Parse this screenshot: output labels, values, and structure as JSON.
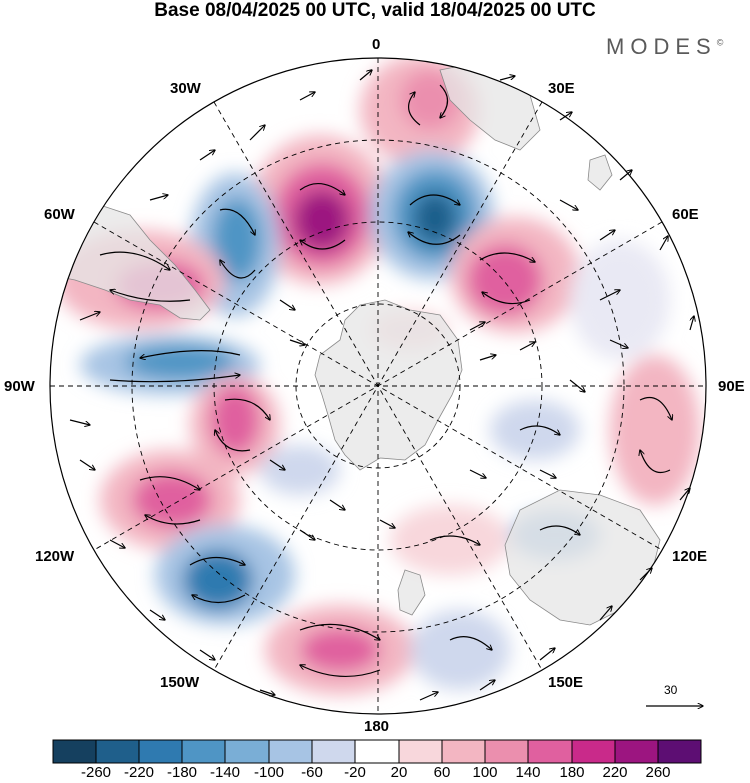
{
  "title": "Base 08/04/2025 00 UTC, valid 18/04/2025 00 UTC",
  "brand": "MODES",
  "brand_mark": "©",
  "longitude_labels": {
    "n0": "0",
    "n30e": "30E",
    "n60e": "60E",
    "n90e": "90E",
    "n120e": "120E",
    "n150e": "150E",
    "n180": "180",
    "n150w": "150W",
    "n120w": "120W",
    "n90w": "90W",
    "n60w": "60W",
    "n30w": "30W"
  },
  "reference_vector": {
    "label": "30"
  },
  "colorbar": {
    "ticks": [
      "-260",
      "-220",
      "-180",
      "-140",
      "-100",
      "-60",
      "-20",
      "20",
      "60",
      "100",
      "140",
      "180",
      "220",
      "260"
    ],
    "colors": [
      "#15405f",
      "#1f5f8b",
      "#2f7ab0",
      "#4f95c5",
      "#7aaed6",
      "#a7c4e4",
      "#cfd8ed",
      "#e9e9f4",
      "#ffffff",
      "#f8d7dc",
      "#f3b6c2",
      "#eb8fae",
      "#e0609f",
      "#c92a8a",
      "#9c1580",
      "#5d0e73"
    ]
  },
  "colors": {
    "land": "#e6e6e6",
    "coast": "#8a8a8a",
    "grid": "#000000"
  }
}
